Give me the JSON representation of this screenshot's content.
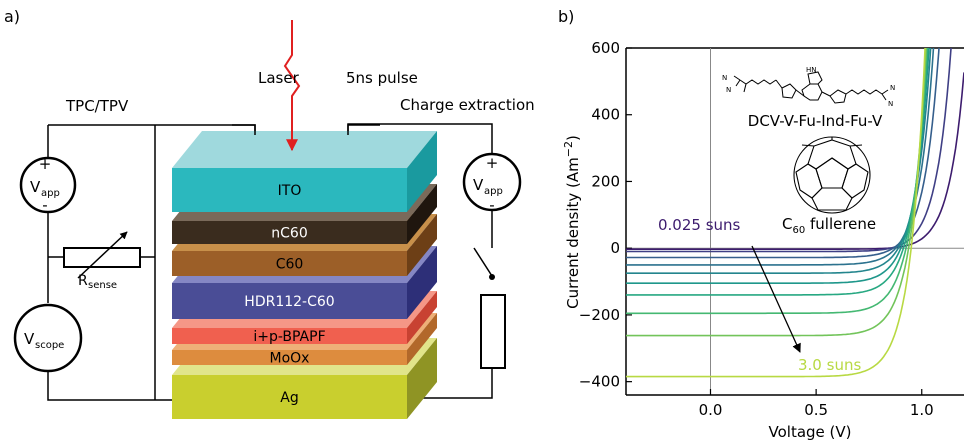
{
  "panel_a": {
    "label": "a)",
    "laser": "Laser",
    "pulse": "5ns pulse",
    "tpc_tpv": "TPC/TPV",
    "charge_extraction": "Charge extraction",
    "vapp_left": "V",
    "vapp_left_sub": "app",
    "vapp_right": "V",
    "vapp_right_sub": "app",
    "plus": "+",
    "minus": "-",
    "rsense": "R",
    "rsense_sub": "sense",
    "vscope": "V",
    "vscope_sub": "scope",
    "layers": [
      {
        "label": "ITO",
        "front": "#2bb8be",
        "top": "#9fd9dd",
        "side": "#1a9a9f",
        "text_color": "#000000"
      },
      {
        "label": "nC60",
        "front": "#3a2c1e",
        "top": "#7a6a5a",
        "side": "#1f160e",
        "text_color": "#ffffff"
      },
      {
        "label": "C60",
        "front": "#9c5f28",
        "top": "#c8904a",
        "side": "#6d3f16",
        "text_color": "#000000"
      },
      {
        "label": "HDR112-C60",
        "front": "#4a4d96",
        "top": "#8587c4",
        "side": "#2d2f78",
        "text_color": "#ffffff"
      },
      {
        "label": "i+p-BPAPF",
        "front": "#f0604f",
        "top": "#f59787",
        "side": "#c84232",
        "text_color": "#000000"
      },
      {
        "label": "MoOx",
        "front": "#dd8c3e",
        "top": "#eeb078",
        "side": "#b2682a",
        "text_color": "#000000"
      },
      {
        "label": "Ag",
        "front": "#c9cf2e",
        "top": "#e1e58a",
        "side": "#8f9424",
        "text_color": "#000000"
      }
    ]
  },
  "panel_b": {
    "label": "b)",
    "molecule_name": "DCV-V-Fu-Ind-Fu-V",
    "fullerene_label": "C",
    "fullerene_sub": "60",
    "fullerene_suffix": " fullerene",
    "annotation_low": "0.025 suns",
    "annotation_high": "3.0 suns",
    "colors": {
      "low": "#3d1c6e",
      "high": "#b8d943"
    }
  },
  "chart_data": {
    "type": "line",
    "title": "",
    "xlabel": "Voltage (V)",
    "ylabel": "Current density (Am",
    "ylabel_sup": "−2",
    "ylabel_end": ")",
    "xlim": [
      -0.4,
      1.2
    ],
    "ylim": [
      -440,
      600
    ],
    "xticks": [
      0.0,
      0.5,
      1.0
    ],
    "xtick_labels": [
      "0.0",
      "0.5",
      "1.0"
    ],
    "yticks": [
      -400,
      -200,
      0,
      200,
      400,
      600
    ],
    "ytick_labels": [
      "−400",
      "−200",
      "0",
      "200",
      "400",
      "600"
    ],
    "voc_range": [
      0.84,
      0.95
    ],
    "series": [
      {
        "jsc": -3,
        "color": "#3d1c6e"
      },
      {
        "jsc": -10,
        "color": "#3f3f85"
      },
      {
        "jsc": -28,
        "color": "#355e8c"
      },
      {
        "jsc": -50,
        "color": "#2c728e"
      },
      {
        "jsc": -75,
        "color": "#23858d"
      },
      {
        "jsc": -105,
        "color": "#1f978b"
      },
      {
        "jsc": -140,
        "color": "#27a882"
      },
      {
        "jsc": -195,
        "color": "#44b872"
      },
      {
        "jsc": -262,
        "color": "#72c45a"
      },
      {
        "jsc": -385,
        "color": "#b8d943"
      }
    ]
  }
}
